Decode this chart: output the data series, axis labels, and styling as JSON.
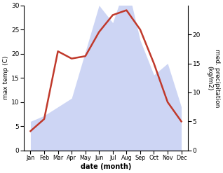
{
  "months": [
    "Jan",
    "Feb",
    "Mar",
    "Apr",
    "May",
    "Jun",
    "Jul",
    "Aug",
    "Sep",
    "Oct",
    "Nov",
    "Dec"
  ],
  "month_x": [
    1,
    2,
    3,
    4,
    5,
    6,
    7,
    8,
    9,
    10,
    11,
    12
  ],
  "temperature": [
    4.0,
    6.5,
    20.5,
    19.0,
    19.5,
    24.5,
    28.0,
    29.0,
    25.0,
    18.0,
    10.0,
    6.0
  ],
  "precipitation": [
    5.0,
    6.0,
    7.5,
    9.0,
    17.0,
    25.0,
    22.0,
    29.0,
    19.0,
    13.0,
    15.0,
    7.5
  ],
  "temp_color": "#c0392b",
  "precip_color": "#b8c4f0",
  "temp_ylim": [
    0,
    30
  ],
  "right_ylim": [
    0,
    25
  ],
  "right_yticks": [
    0,
    5,
    10,
    15,
    20
  ],
  "left_yticks": [
    0,
    5,
    10,
    15,
    20,
    25,
    30
  ],
  "xlabel": "date (month)",
  "ylabel_left": "max temp (C)",
  "ylabel_right": "med. precipitation\n(kg/m2)",
  "bg_color": "#ffffff",
  "line_width": 1.8,
  "fig_width": 3.18,
  "fig_height": 2.47,
  "dpi": 100
}
